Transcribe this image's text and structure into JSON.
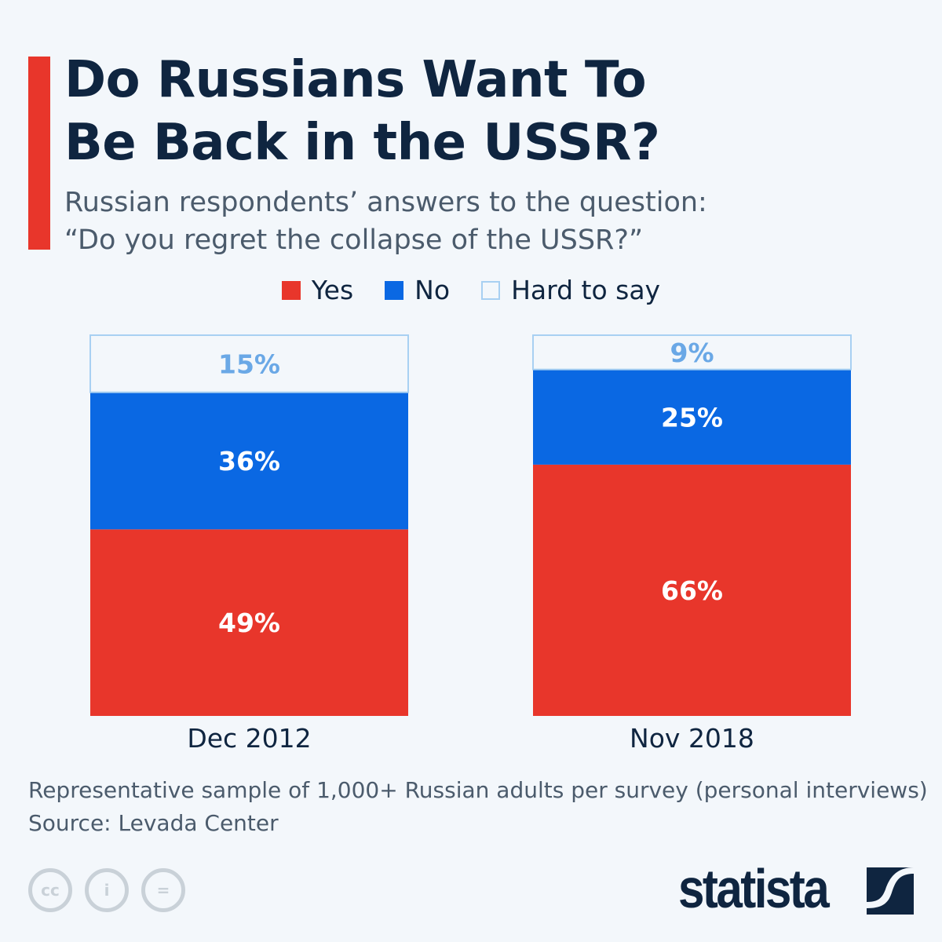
{
  "title_lines": [
    "Do Russians Want To",
    "Be Back in the USSR?"
  ],
  "subtitle_lines": [
    "Russian respondents’ answers to the question:",
    "“Do you regret the collapse of the USSR?”"
  ],
  "footer": {
    "note": "Representative sample of 1,000+ Russian adults per survey (personal interviews)",
    "source": "Source: Levada Center",
    "brand": "statista"
  },
  "colors": {
    "yes": "#e8362b",
    "no": "#0a68e3",
    "hard": "#f3f7fb",
    "hard_border": "#a8d0f2",
    "hard_text": "#6aa8e6"
  },
  "icons": [
    "creative-commons-icon",
    "attribution-icon",
    "no-derivatives-icon",
    "statista-logo-icon"
  ],
  "chart_data": {
    "type": "bar",
    "stacked": true,
    "categories": [
      "Dec 2012",
      "Nov 2018"
    ],
    "series": [
      {
        "name": "Yes",
        "values": [
          49,
          66
        ],
        "labels": [
          "49%",
          "66%"
        ]
      },
      {
        "name": "No",
        "values": [
          36,
          25
        ],
        "labels": [
          "36%",
          "25%"
        ]
      },
      {
        "name": "Hard to say",
        "values": [
          15,
          9
        ],
        "labels": [
          "15%",
          "9%"
        ]
      }
    ],
    "ylim": [
      0,
      100
    ],
    "grid": false,
    "legend": "top-center"
  }
}
